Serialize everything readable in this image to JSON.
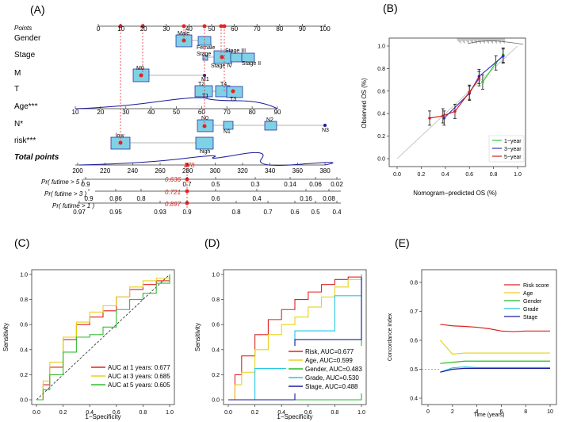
{
  "panels": {
    "A": "(A)",
    "B": "(B)",
    "C": "(C)",
    "D": "(D)",
    "E": "(E)"
  },
  "nomogram": {
    "rows": {
      "points": "Points",
      "gender": "Gender",
      "stage": "Stage",
      "m": "M",
      "t": "T",
      "age": "Age***",
      "n": "N*",
      "risk": "risk***",
      "total": "Total points",
      "pr5": "Pr( futime > 5 )",
      "pr3": "Pr( futime > 3 )",
      "pr1": "Pr( futime > 1 )"
    },
    "points_ticks": [
      "0",
      "10",
      "20",
      "30",
      "40",
      "50",
      "60",
      "70",
      "80",
      "90",
      "100"
    ],
    "age_ticks": [
      "10",
      "20",
      "30",
      "40",
      "50",
      "60",
      "70",
      "80",
      "90"
    ],
    "total_ticks": [
      "200",
      "220",
      "240",
      "260",
      "280",
      "300",
      "320",
      "340",
      "360",
      "380"
    ],
    "pr5_ticks": [
      "0.9",
      "0.7",
      "0.5",
      "0.3",
      "0.14",
      "0.06",
      "0.02"
    ],
    "pr3_ticks": [
      "0.9",
      "0.86",
      "0.8",
      "0.6",
      "0.4",
      "0.16",
      "0.08"
    ],
    "pr1_ticks": [
      "0.97",
      "0.95",
      "0.93",
      "0.9",
      "0.8",
      "0.7",
      "0.6",
      "0.5",
      "0.4"
    ],
    "box_labels": {
      "male": "Male",
      "female": "Female",
      "stage_i": "Stage",
      "stage_iii": "Stage III",
      "stage_ii": "Stage II",
      "stage_iv": "Stage IV",
      "m0": "M0",
      "m1": "M1",
      "t2": "T2",
      "t4": "T4",
      "t1": "T1",
      "t3": "T3",
      "n0": "N0",
      "n1": "N1",
      "n2": "N2",
      "n3": "N3",
      "low": "low",
      "high": "high"
    },
    "total_score": "278",
    "pred_5": "0.636",
    "pred_3": "0.721",
    "pred_1": "0.897"
  },
  "calibration": {
    "xlabel": "Nomogram−predicted OS (%)",
    "ylabel": "Observed OS (%)",
    "ticks": [
      "0.0",
      "0.2",
      "0.4",
      "0.6",
      "0.8",
      "1.0"
    ],
    "legend": [
      "1−year",
      "3−year",
      "5−year"
    ],
    "colors": [
      "#33cc33",
      "#3333cc",
      "#cc2222"
    ]
  },
  "roc_c": {
    "xlabel": "1−Specificity",
    "ylabel": "Sensitivity",
    "ticks": [
      "0.0",
      "0.2",
      "0.4",
      "0.6",
      "0.8",
      "1.0"
    ],
    "legend": [
      "AUC at 1 years: 0.677",
      "AUC at 3 years: 0.685",
      "AUC at 5 years: 0.605"
    ],
    "colors": [
      "#dd2222",
      "#e6d21a",
      "#33bb33"
    ]
  },
  "roc_d": {
    "xlabel": "1−Specificity",
    "ylabel": "Sensitivity",
    "ticks": [
      "0.0",
      "0.2",
      "0.4",
      "0.6",
      "0.8",
      "1.0"
    ],
    "legend": [
      "Risk, AUC=0.677",
      "Age, AUC=0.599",
      "Gender, AUC=0.483",
      "Grade, AUC=0.530",
      "Stage, AUC=0.488"
    ],
    "colors": [
      "#dd2222",
      "#e6d21a",
      "#22bb22",
      "#22c8e0",
      "#1a1aa0"
    ]
  },
  "cindex": {
    "xlabel": "Time (years)",
    "ylabel": "Concordance index",
    "xticks": [
      "0",
      "2",
      "4",
      "6",
      "8",
      "10"
    ],
    "yticks": [
      "0.4",
      "0.5",
      "0.6",
      "0.7",
      "0.8"
    ],
    "legend": [
      "Risk score",
      "Age",
      "Gender",
      "Grade",
      "Stage"
    ],
    "colors": [
      "#dd2222",
      "#e6d21a",
      "#22bb22",
      "#22c8e0",
      "#1a1aa0"
    ]
  },
  "chart_data": [
    {
      "panel": "B",
      "type": "line",
      "title": "",
      "xlabel": "Nomogram−predicted OS (%)",
      "ylabel": "Observed OS (%)",
      "xlim": [
        0,
        1
      ],
      "ylim": [
        0,
        1
      ],
      "series": [
        {
          "name": "1−year",
          "x": [
            0.71,
            0.82,
            0.88
          ],
          "y": [
            0.68,
            0.85,
            0.92
          ]
        },
        {
          "name": "3−year",
          "x": [
            0.39,
            0.6,
            0.68,
            0.88
          ],
          "y": [
            0.36,
            0.58,
            0.73,
            0.91
          ]
        },
        {
          "name": "5−year",
          "x": [
            0.27,
            0.38,
            0.48,
            0.6,
            0.68
          ],
          "y": [
            0.36,
            0.38,
            0.42,
            0.59,
            0.71
          ]
        }
      ]
    },
    {
      "panel": "C",
      "type": "line",
      "xlabel": "1−Specificity",
      "ylabel": "Sensitivity",
      "xlim": [
        0,
        1
      ],
      "ylim": [
        0,
        1
      ],
      "series": [
        {
          "name": "AUC at 1 years: 0.677",
          "x": [
            0,
            0.05,
            0.1,
            0.2,
            0.3,
            0.4,
            0.5,
            0.6,
            0.7,
            0.8,
            0.9,
            1
          ],
          "y": [
            0,
            0.12,
            0.26,
            0.48,
            0.6,
            0.66,
            0.71,
            0.82,
            0.88,
            0.92,
            0.95,
            1
          ]
        },
        {
          "name": "AUC at 3 years: 0.685",
          "x": [
            0,
            0.05,
            0.1,
            0.2,
            0.3,
            0.4,
            0.5,
            0.6,
            0.7,
            0.8,
            0.9,
            1
          ],
          "y": [
            0,
            0.15,
            0.3,
            0.5,
            0.62,
            0.7,
            0.75,
            0.82,
            0.9,
            0.95,
            0.97,
            1
          ]
        },
        {
          "name": "AUC at 5 years: 0.605",
          "x": [
            0,
            0.05,
            0.1,
            0.2,
            0.3,
            0.4,
            0.5,
            0.6,
            0.7,
            0.8,
            0.9,
            1
          ],
          "y": [
            0,
            0.08,
            0.2,
            0.38,
            0.5,
            0.52,
            0.58,
            0.72,
            0.8,
            0.85,
            0.93,
            1
          ]
        }
      ]
    },
    {
      "panel": "D",
      "type": "line",
      "xlabel": "1−Specificity",
      "ylabel": "Sensitivity",
      "xlim": [
        0,
        1
      ],
      "ylim": [
        0,
        1
      ],
      "series": [
        {
          "name": "Risk, AUC=0.677",
          "x": [
            0,
            0.05,
            0.1,
            0.2,
            0.3,
            0.4,
            0.5,
            0.6,
            0.7,
            0.8,
            0.9,
            1
          ],
          "y": [
            0,
            0.2,
            0.35,
            0.52,
            0.64,
            0.72,
            0.8,
            0.86,
            0.92,
            0.96,
            0.98,
            1
          ]
        },
        {
          "name": "Age, AUC=0.599",
          "x": [
            0,
            0.05,
            0.1,
            0.2,
            0.3,
            0.4,
            0.5,
            0.6,
            0.7,
            0.8,
            0.9,
            1
          ],
          "y": [
            0,
            0.12,
            0.22,
            0.4,
            0.52,
            0.6,
            0.66,
            0.74,
            0.82,
            0.9,
            0.96,
            1
          ]
        },
        {
          "name": "Gender, AUC=0.483",
          "x": [
            0,
            1
          ],
          "y": [
            0,
            0.97
          ]
        },
        {
          "name": "Grade, AUC=0.530",
          "x": [
            0,
            0.2,
            0.5,
            0.8,
            1
          ],
          "y": [
            0,
            0.25,
            0.55,
            0.83,
            1
          ]
        },
        {
          "name": "Stage, AUC=0.488",
          "x": [
            0,
            0.5,
            1
          ],
          "y": [
            0,
            0.48,
            0.98
          ]
        }
      ]
    },
    {
      "panel": "E",
      "type": "line",
      "xlabel": "Time (years)",
      "ylabel": "Concordance index",
      "xlim": [
        0,
        10
      ],
      "ylim": [
        0.4,
        0.8
      ],
      "reference_y": 0.5,
      "series": [
        {
          "name": "Risk score",
          "x": [
            1,
            2,
            3,
            4,
            5,
            6,
            7,
            8,
            9,
            10
          ],
          "y": [
            0.655,
            0.65,
            0.648,
            0.645,
            0.64,
            0.632,
            0.63,
            0.632,
            0.632,
            0.632
          ]
        },
        {
          "name": "Age",
          "x": [
            1,
            2,
            3,
            4,
            5,
            6,
            7,
            8,
            9,
            10
          ],
          "y": [
            0.6,
            0.552,
            0.556,
            0.556,
            0.556,
            0.556,
            0.556,
            0.556,
            0.556,
            0.556
          ]
        },
        {
          "name": "Gender",
          "x": [
            1,
            2,
            3,
            4,
            5,
            6,
            7,
            8,
            9,
            10
          ],
          "y": [
            0.52,
            0.524,
            0.528,
            0.528,
            0.528,
            0.528,
            0.528,
            0.528,
            0.528,
            0.528
          ]
        },
        {
          "name": "Grade",
          "x": [
            1,
            2,
            3,
            4,
            5,
            6,
            7,
            8,
            9,
            10
          ],
          "y": [
            0.49,
            0.505,
            0.508,
            0.506,
            0.506,
            0.506,
            0.506,
            0.506,
            0.506,
            0.506
          ]
        },
        {
          "name": "Stage",
          "x": [
            1,
            2,
            3,
            4,
            5,
            6,
            7,
            8,
            9,
            10
          ],
          "y": [
            0.49,
            0.5,
            0.503,
            0.503,
            0.503,
            0.503,
            0.503,
            0.503,
            0.503,
            0.503
          ]
        }
      ]
    }
  ]
}
